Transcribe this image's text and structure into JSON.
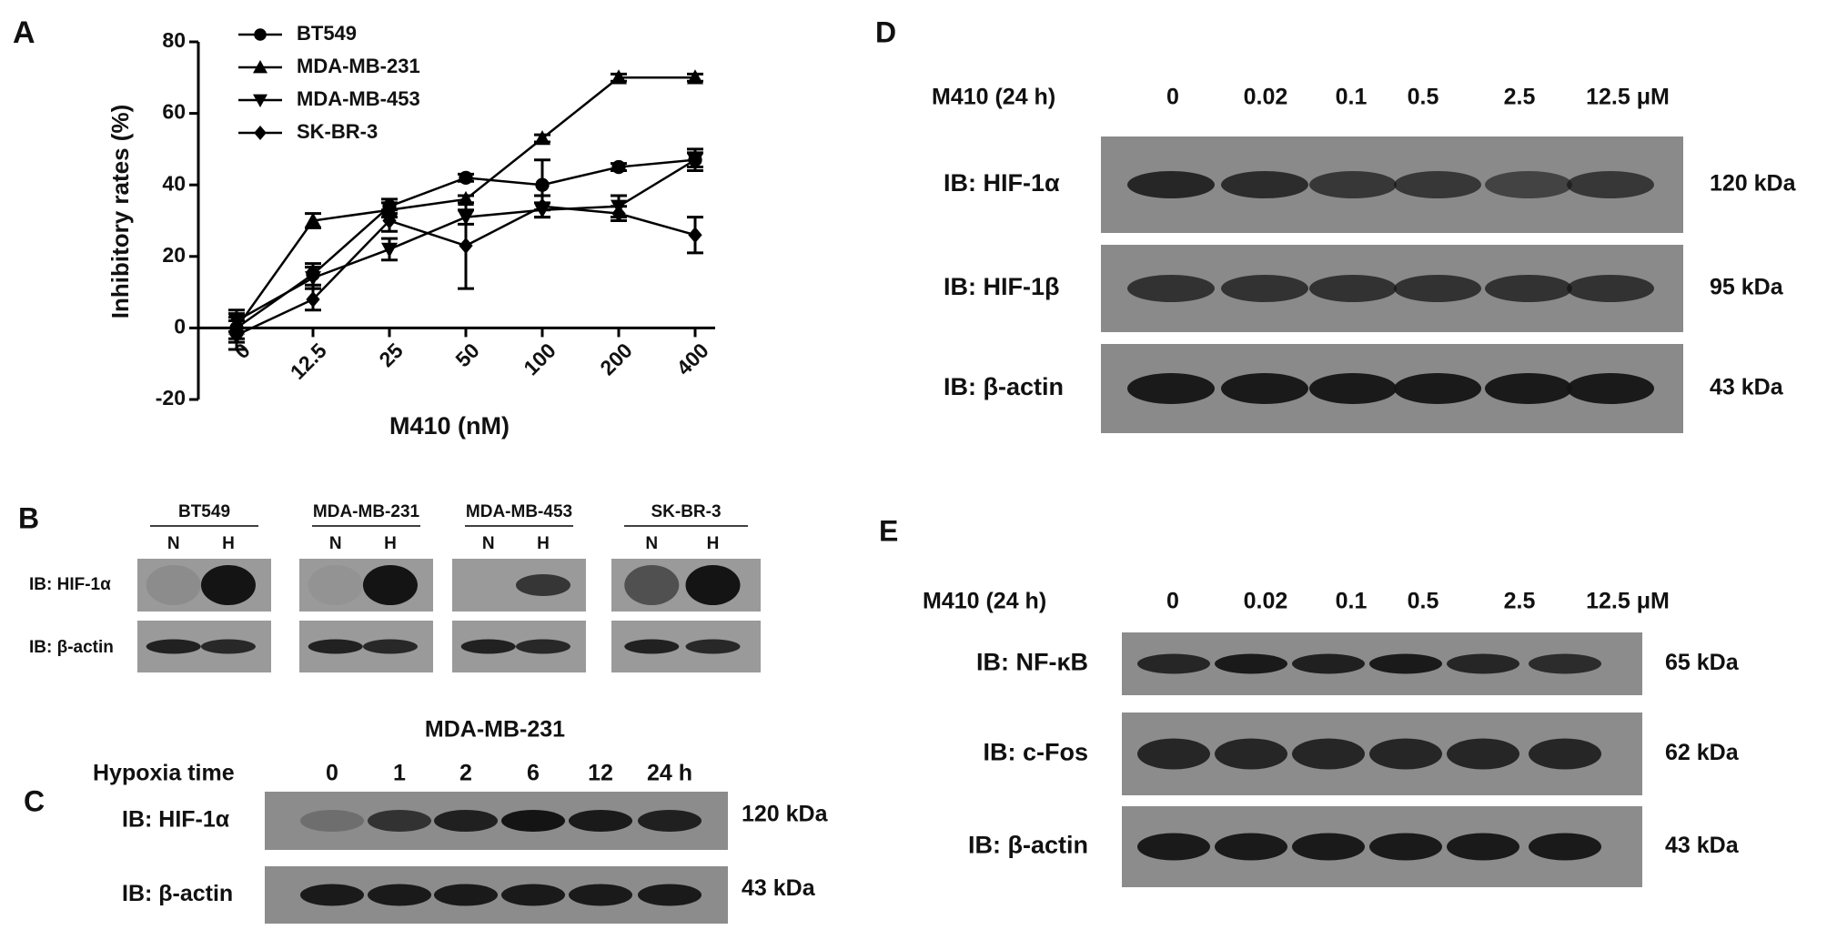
{
  "chart_data": {
    "type": "line",
    "panel": "A",
    "y_label": "Inhibitory rates (%)",
    "x_label": "M410 (nM)",
    "categories": [
      "0",
      "12.5",
      "25",
      "50",
      "100",
      "200",
      "400"
    ],
    "series": [
      {
        "name": "BT549",
        "color": "#000000",
        "marker": "circle",
        "values": [
          0,
          15,
          34,
          42,
          40,
          45,
          47
        ],
        "errors": [
          4,
          3,
          2,
          1,
          7,
          1,
          3
        ]
      },
      {
        "name": "MDA-MB-231",
        "color": "#000000",
        "marker": "triangle",
        "values": [
          0,
          30,
          33,
          36,
          53,
          70,
          70
        ],
        "errors": [
          3,
          2,
          2,
          1,
          1,
          1,
          1
        ]
      },
      {
        "name": "MDA-MB-453",
        "color": "#000000",
        "marker": "triangle-down",
        "values": [
          2,
          14,
          22,
          31,
          33,
          34,
          47
        ],
        "errors": [
          3,
          3,
          3,
          2,
          2,
          3,
          2
        ]
      },
      {
        "name": "SK-BR-3",
        "color": "#000000",
        "marker": "diamond",
        "values": [
          -2,
          8,
          30,
          23,
          34,
          32,
          26
        ],
        "errors": [
          4,
          3,
          3,
          12,
          3,
          2,
          5
        ]
      }
    ],
    "ylim": [
      -20,
      80
    ],
    "yticks": [
      -20,
      0,
      20,
      40,
      60,
      80
    ],
    "legend": "top-left"
  },
  "panel_b": {
    "panel": "B",
    "cell_lines": [
      {
        "name": "BT549",
        "lanes": [
          "N",
          "H"
        ]
      },
      {
        "name": "MDA-MB-231",
        "lanes": [
          "N",
          "H"
        ]
      },
      {
        "name": "MDA-MB-453",
        "lanes": [
          "N",
          "H"
        ]
      },
      {
        "name": "SK-BR-3",
        "lanes": [
          "N",
          "H"
        ]
      }
    ],
    "rows": [
      "IB: HIF-1α",
      "IB: β-actin"
    ]
  },
  "panel_c": {
    "panel": "C",
    "title": "MDA-MB-231",
    "lane_header": "Hypoxia time",
    "lanes": [
      "0",
      "1",
      "2",
      "6",
      "12",
      "24 h"
    ],
    "rows": [
      {
        "label": "IB: HIF-1α",
        "size": "120 kDa"
      },
      {
        "label": "IB: β-actin",
        "size": "43 kDa"
      }
    ]
  },
  "panel_d": {
    "panel": "D",
    "lane_header": "M410 (24 h)",
    "lanes": [
      "0",
      "0.02",
      "0.1",
      "0.5",
      "2.5",
      "12.5 μM"
    ],
    "rows": [
      {
        "label": "IB: HIF-1α",
        "size": "120 kDa"
      },
      {
        "label": "IB: HIF-1β",
        "size": "95 kDa"
      },
      {
        "label": "IB: β-actin",
        "size": "43 kDa"
      }
    ]
  },
  "panel_e": {
    "panel": "E",
    "lane_header": "M410 (24 h)",
    "lanes": [
      "0",
      "0.02",
      "0.1",
      "0.5",
      "2.5",
      "12.5 μM"
    ],
    "rows": [
      {
        "label": "IB: NF-κB",
        "size": "65 kDa"
      },
      {
        "label": "IB: c-Fos",
        "size": "62 kDa"
      },
      {
        "label": "IB: β-actin",
        "size": "43 kDa"
      }
    ]
  }
}
